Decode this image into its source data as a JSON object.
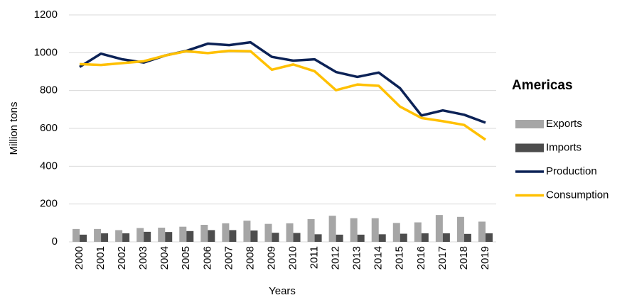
{
  "chart_data": {
    "type": "combo",
    "legend_title": "Americas",
    "x_label": "Years",
    "y_label": "Million tons",
    "categories": [
      "2000",
      "2001",
      "2002",
      "2003",
      "2004",
      "2005",
      "2006",
      "2007",
      "2008",
      "2009",
      "2010",
      "2011",
      "2012",
      "2013",
      "2014",
      "2015",
      "2016",
      "2017",
      "2018",
      "2019"
    ],
    "series": [
      {
        "name": "Exports",
        "type": "bar",
        "color": "#a6a6a6",
        "values": [
          68,
          68,
          62,
          73,
          75,
          80,
          90,
          98,
          112,
          95,
          98,
          120,
          138,
          125,
          125,
          100,
          103,
          142,
          132,
          107
        ]
      },
      {
        "name": "Imports",
        "type": "bar",
        "color": "#4d4d4d",
        "values": [
          38,
          45,
          45,
          53,
          52,
          57,
          62,
          62,
          60,
          48,
          47,
          40,
          38,
          38,
          40,
          43,
          45,
          45,
          42,
          45
        ]
      },
      {
        "name": "Production",
        "type": "line",
        "color": "#0c2256",
        "values": [
          925,
          995,
          965,
          948,
          985,
          1010,
          1048,
          1040,
          1055,
          978,
          958,
          965,
          898,
          872,
          895,
          812,
          668,
          695,
          672,
          630
        ]
      },
      {
        "name": "Consumption",
        "type": "line",
        "color": "#ffc000",
        "values": [
          940,
          935,
          945,
          955,
          985,
          1008,
          998,
          1010,
          1008,
          910,
          938,
          902,
          802,
          832,
          825,
          715,
          655,
          638,
          618,
          540
        ]
      }
    ],
    "ylim": [
      0,
      1200
    ],
    "yticks": [
      0,
      200,
      400,
      600,
      800,
      1000,
      1200
    ],
    "grid": true,
    "legend": "right"
  }
}
